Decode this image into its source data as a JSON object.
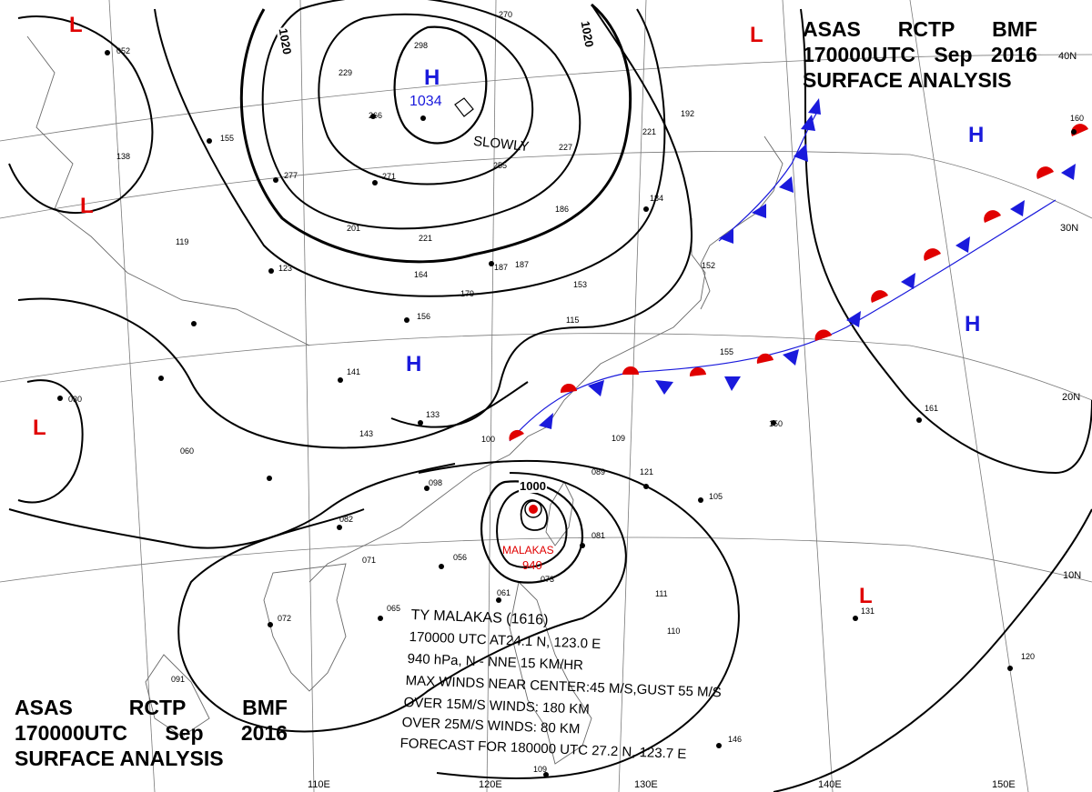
{
  "header": {
    "agency_code": "ASAS",
    "station": "RCTP",
    "office": "BMF",
    "datetime": "170000UTC",
    "month": "Sep",
    "year": "2016",
    "product": "SURFACE ANALYSIS"
  },
  "typhoon": {
    "name": "MALAKAS",
    "pressure": "940",
    "label_lines": [
      "TY  MALAKAS  (1616)",
      "170000 UTC AT24.1 N, 123.0 E",
      "940 hPa, N - NNE  15 KM/HR",
      "MAX WINDS NEAR CENTER:45 M/S,GUST 55 M/S",
      "OVER 15M/S WINDS: 180 KM",
      "OVER 25M/S WINDS: 80 KM",
      "FORECAST FOR 180000 UTC 27.2 N, 123.7 E"
    ]
  },
  "pressure_systems": [
    {
      "type": "H",
      "id": "high-north"
    },
    {
      "type": "H",
      "id": "high-central"
    },
    {
      "type": "H",
      "id": "high-pacific-east"
    },
    {
      "type": "H",
      "id": "high-pacific-north"
    },
    {
      "type": "L",
      "id": "low-northwest"
    },
    {
      "type": "L",
      "id": "low-west"
    },
    {
      "type": "L",
      "id": "low-southwest"
    },
    {
      "type": "L",
      "id": "low-northeast"
    },
    {
      "type": "L",
      "id": "low-pacific-south"
    }
  ],
  "high_center_value": "1034",
  "movement_note": "SLOWLY",
  "isobar_labels": [
    "1020",
    "1020",
    "1000"
  ],
  "latitude_labels": [
    "40N",
    "30N",
    "20N",
    "10N"
  ],
  "longitude_labels": [
    "110E",
    "120E",
    "130E",
    "140E",
    "150E"
  ],
  "station_values": [
    "052",
    "270",
    "298",
    "229",
    "266",
    "155",
    "277",
    "271",
    "255",
    "227",
    "138",
    "201",
    "221",
    "119",
    "123",
    "164",
    "179",
    "156",
    "153",
    "115",
    "186",
    "184",
    "221",
    "192",
    "141",
    "133",
    "143",
    "100",
    "109",
    "121",
    "089",
    "098",
    "082",
    "071",
    "056",
    "081",
    "073",
    "065",
    "061",
    "072",
    "111",
    "110",
    "105",
    "091",
    "146",
    "109",
    "030",
    "060",
    "150",
    "161",
    "131",
    "120",
    "160",
    "187",
    "187",
    "152",
    "155"
  ],
  "colors": {
    "isobar": "#000000",
    "cold_front": "#1a1adc",
    "warm_front": "#e00000",
    "high_label": "#1a1adc",
    "low_label": "#e00000",
    "grid": "#7a7a7a",
    "coastline": "#6a6a6a"
  }
}
